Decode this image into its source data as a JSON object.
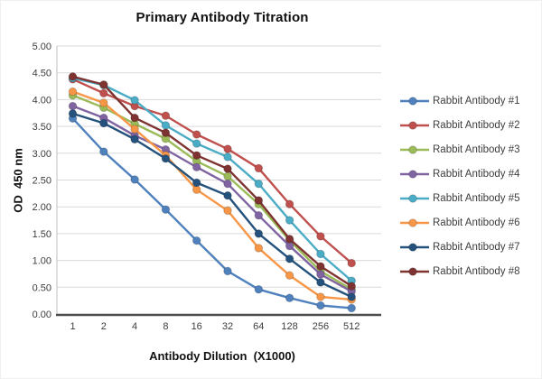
{
  "window": {
    "background": "#ffffff"
  },
  "chart_data": {
    "type": "line",
    "title": "Primary Antibody Titration",
    "xlabel": "Antibody Dilution  (X1000)",
    "ylabel": "OD  450 nm",
    "x_tick_labels": [
      "1",
      "2",
      "4",
      "8",
      "16",
      "32",
      "64",
      "128",
      "256",
      "512"
    ],
    "y_tick_labels": [
      "0.00",
      "0.50",
      "1.00",
      "1.50",
      "2.00",
      "2.50",
      "3.00",
      "3.50",
      "4.00",
      "4.50",
      "5.00"
    ],
    "y_ticks": [
      0,
      0.5,
      1,
      1.5,
      2,
      2.5,
      3,
      3.5,
      4,
      4.5,
      5
    ],
    "ylim": [
      0,
      5
    ],
    "grid": "horizontal",
    "legend_position": "right",
    "marker": "circle",
    "colors": {
      "gridline": "#d9d9d9",
      "y_axis_line": "#bfbfbf",
      "x_axis_line": "#4d4d4d",
      "tick_text": "#3d3d3d"
    },
    "series": [
      {
        "name": "Rabbit Antibody #1",
        "color": "#4F81BD",
        "values": [
          3.65,
          3.03,
          2.51,
          1.95,
          1.37,
          0.8,
          0.46,
          0.3,
          0.16,
          0.11
        ]
      },
      {
        "name": "Rabbit Antibody #2",
        "color": "#C0504D",
        "values": [
          4.38,
          4.12,
          3.88,
          3.7,
          3.35,
          3.08,
          2.72,
          2.05,
          1.45,
          0.95
        ]
      },
      {
        "name": "Rabbit Antibody #3",
        "color": "#9BBB59",
        "values": [
          4.08,
          3.85,
          3.55,
          3.27,
          2.85,
          2.57,
          2.05,
          1.37,
          0.8,
          0.46
        ]
      },
      {
        "name": "Rabbit Antibody #4",
        "color": "#8064A2",
        "values": [
          3.88,
          3.66,
          3.33,
          3.07,
          2.74,
          2.43,
          1.84,
          1.27,
          0.74,
          0.42
        ]
      },
      {
        "name": "Rabbit Antibody #5",
        "color": "#4BACC6",
        "values": [
          4.4,
          4.27,
          3.99,
          3.52,
          3.18,
          2.93,
          2.43,
          1.75,
          1.12,
          0.62
        ]
      },
      {
        "name": "Rabbit Antibody #6",
        "color": "#F79646",
        "values": [
          4.15,
          3.94,
          3.45,
          2.96,
          2.32,
          1.93,
          1.23,
          0.72,
          0.32,
          0.27
        ]
      },
      {
        "name": "Rabbit Antibody #7",
        "color": "#24527D",
        "values": [
          3.74,
          3.56,
          3.26,
          2.9,
          2.45,
          2.21,
          1.5,
          1.03,
          0.59,
          0.32
        ]
      },
      {
        "name": "Rabbit Antibody #8",
        "color": "#7E3331",
        "values": [
          4.43,
          4.28,
          3.66,
          3.38,
          2.96,
          2.71,
          2.12,
          1.4,
          0.89,
          0.52
        ]
      }
    ]
  }
}
